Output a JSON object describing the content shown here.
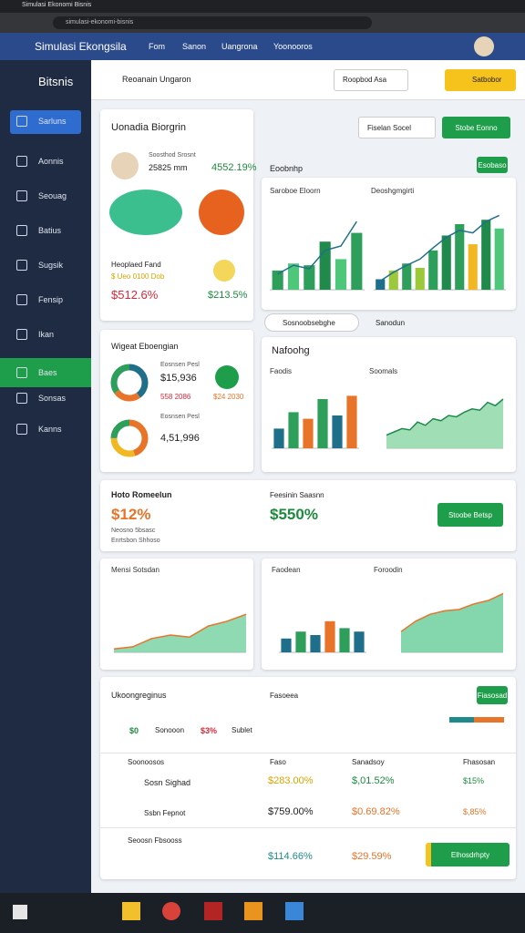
{
  "browser": {
    "tab": "Simulasi Ekonomi Bisnis",
    "url": "simulasi-ekonomi-bisnis"
  },
  "header": {
    "title": "Simulasi Ekongsila",
    "nav": [
      "Fom",
      "Sanon",
      "Uangrona",
      "Yoonooros"
    ]
  },
  "sidebar": {
    "brand": "Bitsnis",
    "items": [
      "Sarluns",
      "Aonnis",
      "Seouag",
      "Batius",
      "Sugsik",
      "Fensip",
      "Ikan",
      "Baes",
      "Sonsas",
      "Kanns"
    ]
  },
  "topbar": {
    "search": "Reoanain Ungaron",
    "select": "Roopbod Asa",
    "button": "Satbobor"
  },
  "controls": {
    "select": "Fiselan Socel",
    "button": "Stobe Eonno",
    "label": "Eoobnhp",
    "small_button": "Esobaso",
    "filter": "Sosnoobsebghe",
    "filter2": "Sanodun"
  },
  "profile": {
    "title": "Uonadia Biorgrin",
    "sub": "Soosthod Srosnt",
    "left": "25825 mm",
    "right": "4552.19%",
    "label": "Heoplaed Fand",
    "note": "$ Ueo 0100 Dob",
    "value": "$512.6%",
    "value2": "$213.5%"
  },
  "wallet": {
    "title": "Wigeat Eboengian",
    "sub1": "Eosnsen Pesl",
    "v1": "$15,936",
    "a1": "558 2086",
    "b1": "$24 2030",
    "sub2": "Eosnsen Pesl",
    "v2": "4,51,996"
  },
  "donuts": [
    {
      "values": [
        40,
        25,
        35
      ],
      "colors": [
        "#1f6f8b",
        "#e8742a",
        "#2e9e5b"
      ]
    },
    {
      "values": [
        45,
        30,
        25
      ],
      "colors": [
        "#e8742a",
        "#f1b824",
        "#2e9e5b"
      ]
    }
  ],
  "summary": {
    "title": "Hoto Romeelun",
    "value": "$12%",
    "line1": "Neosno 5bsasc",
    "line2": "Enrtsbon Shhoso",
    "title2": "Feesinin Saasnn",
    "value2": "$550%",
    "button": "Stoobe Betsp"
  },
  "panel_title": "Nafoohg",
  "charts": [
    {
      "type": "bar",
      "title": "Saroboe Eloorn",
      "ylim": [
        0,
        100
      ],
      "values": [
        22,
        30,
        28,
        55,
        35,
        65
      ],
      "colors": [
        "#2e9e5b",
        "#4fc77a",
        "#2e9e5b",
        "#1f8a4c",
        "#4fc77a",
        "#2e9e5b"
      ],
      "line": [
        18,
        28,
        24,
        45,
        50,
        78
      ],
      "line_color": "#1f6f8b"
    },
    {
      "type": "bar",
      "title": "Deoshgmgirti",
      "ylim": [
        0,
        100
      ],
      "values": [
        12,
        22,
        30,
        25,
        45,
        62,
        75,
        52,
        80,
        70
      ],
      "colors": [
        "#1f6f8b",
        "#9bc93a",
        "#2e9e5b",
        "#9bc93a",
        "#2e9e5b",
        "#1f8a4c",
        "#2e9e5b",
        "#f1b824",
        "#1f8a4c",
        "#4fc77a"
      ],
      "line": [
        10,
        20,
        28,
        35,
        48,
        60,
        68,
        65,
        78,
        85
      ],
      "line_color": "#1f6f8b"
    },
    {
      "type": "bar",
      "title": "Faodis",
      "ylim": [
        0,
        100
      ],
      "values": [
        30,
        55,
        45,
        75,
        50,
        80
      ],
      "colors": [
        "#1f6f8b",
        "#2e9e5b",
        "#e8742a",
        "#2e9e5b",
        "#1f6f8b",
        "#e8742a"
      ]
    },
    {
      "type": "area",
      "title": "Soomals",
      "ylim": [
        0,
        100
      ],
      "values": [
        20,
        25,
        30,
        28,
        40,
        35,
        45,
        42,
        50,
        48,
        55,
        60,
        58,
        70,
        65,
        75
      ],
      "color": "#8fd9a8",
      "line_color": "#1f8a4c"
    },
    {
      "type": "area",
      "title": "Mensi Sotsdan",
      "ylim": [
        0,
        100
      ],
      "values": [
        5,
        8,
        20,
        25,
        22,
        38,
        45,
        55
      ],
      "color": "#7dd3a6",
      "line_color": "#e8742a"
    },
    {
      "type": "bar",
      "title": "Faodean",
      "ylim": [
        0,
        100
      ],
      "values": [
        20,
        30,
        25,
        45,
        35,
        30
      ],
      "colors": [
        "#1f6f8b",
        "#2e9e5b",
        "#1f6f8b",
        "#e8742a",
        "#2e9e5b",
        "#1f6f8b"
      ]
    },
    {
      "type": "area",
      "title": "Foroodin",
      "ylim": [
        0,
        100
      ],
      "values": [
        30,
        45,
        55,
        60,
        62,
        70,
        75,
        85
      ],
      "color": "#6fcf9d",
      "line_color": "#e8742a"
    }
  ],
  "table": {
    "title": "Ukoongreginus",
    "title2": "Fasoeea",
    "button": "Fiasosad",
    "stats": [
      "$0",
      "Sonooon",
      "$3%",
      "Sublet"
    ],
    "header": [
      "Soonoosos",
      "Faso",
      "Sanadsoy",
      "Fhasosan"
    ],
    "rows": [
      [
        "Sosn Sighad",
        "$283.00%",
        "$,01.52%",
        "$15%"
      ],
      [
        "Ssbn Fepnot",
        "$759.00%",
        "$0.69.82%",
        "$,85%"
      ],
      [
        "Seoosn Fbsooss",
        "$114.66%",
        "$29.59%",
        "Elhosdrhpty"
      ]
    ]
  }
}
